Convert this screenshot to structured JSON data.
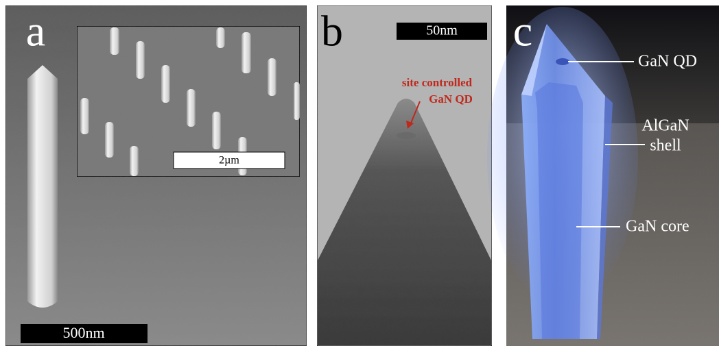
{
  "panels": [
    {
      "label": "a",
      "scale_bar": "500nm",
      "inset": {
        "scale_bar": "2µm"
      }
    },
    {
      "label": "b",
      "scale_bar": "50nm",
      "annotation": [
        "site controlled",
        "GaN QD"
      ]
    },
    {
      "label": "c",
      "labels": [
        [
          "GaN QD"
        ],
        [
          "AlGaN",
          "shell"
        ],
        [
          "GaN core"
        ]
      ]
    }
  ]
}
